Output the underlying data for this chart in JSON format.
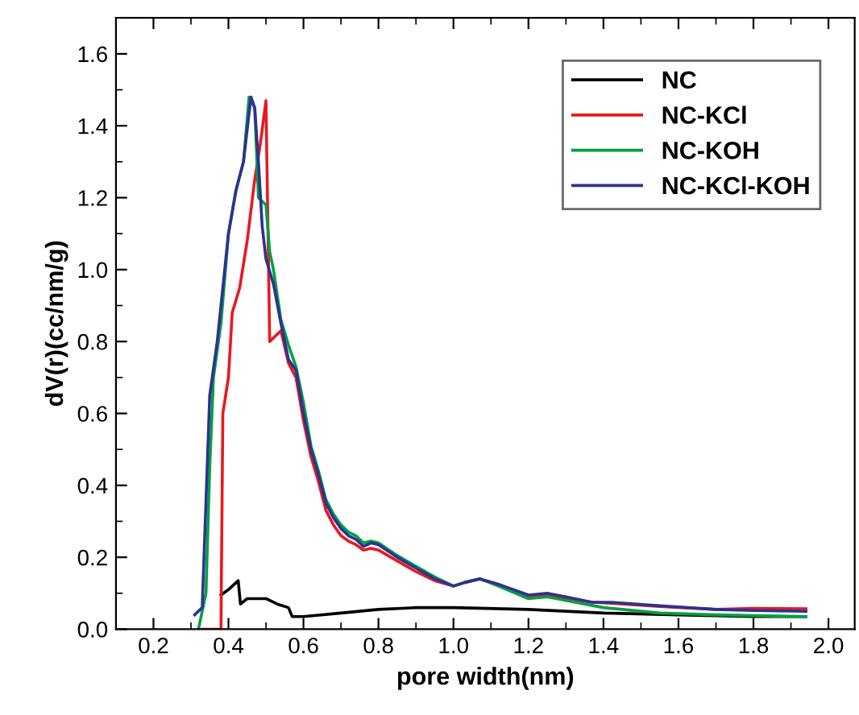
{
  "chart_data": {
    "type": "line",
    "xlabel": "pore width(nm)",
    "ylabel": "dV(r)(cc/nm/g)",
    "xlim": [
      0.1,
      2.07
    ],
    "ylim": [
      0,
      1.7
    ],
    "xticks": [
      0.2,
      0.4,
      0.6,
      0.8,
      {
        "value": 1,
        "label": "1.0"
      },
      1.2,
      1.4,
      1.6,
      1.8,
      {
        "value": 2,
        "label": "2.0"
      }
    ],
    "yticks": [
      {
        "value": 0,
        "label": "0.0"
      },
      0.2,
      0.4,
      0.6,
      0.8,
      {
        "value": 1,
        "label": "1.0"
      },
      1.2,
      1.4,
      1.6
    ],
    "grid": false,
    "legend": "top right",
    "marker": "none",
    "line_style": "solid",
    "series": [
      {
        "name": "NC",
        "color": "#000000",
        "x": [
          0.38,
          0.4,
          0.426,
          0.432,
          0.45,
          0.5,
          0.53,
          0.56,
          0.57,
          0.6,
          0.7,
          0.8,
          0.9,
          1.0,
          1.2,
          1.4,
          1.6,
          1.8,
          1.94
        ],
        "values": [
          0.095,
          0.11,
          0.135,
          0.07,
          0.085,
          0.085,
          0.07,
          0.06,
          0.035,
          0.035,
          0.045,
          0.055,
          0.06,
          0.06,
          0.055,
          0.045,
          0.04,
          0.035,
          0.035
        ]
      },
      {
        "name": "NC-KCl",
        "color": "#e8191f",
        "x": [
          0.33,
          0.38,
          0.385,
          0.4,
          0.41,
          0.43,
          0.45,
          0.47,
          0.485,
          0.5,
          0.51,
          0.54,
          0.56,
          0.58,
          0.6,
          0.62,
          0.64,
          0.66,
          0.68,
          0.7,
          0.72,
          0.74,
          0.76,
          0.78,
          0.8,
          0.85,
          0.9,
          0.95,
          1.0,
          1.03,
          1.07,
          1.12,
          1.2,
          1.25,
          1.3,
          1.37,
          1.42,
          1.55,
          1.7,
          1.8,
          1.94
        ],
        "values": [
          0.0,
          0.0,
          0.6,
          0.7,
          0.88,
          0.95,
          1.08,
          1.25,
          1.35,
          1.47,
          0.8,
          0.83,
          0.74,
          0.7,
          0.58,
          0.48,
          0.41,
          0.33,
          0.29,
          0.26,
          0.245,
          0.235,
          0.22,
          0.225,
          0.22,
          0.19,
          0.16,
          0.135,
          0.12,
          0.13,
          0.14,
          0.125,
          0.09,
          0.095,
          0.085,
          0.075,
          0.072,
          0.063,
          0.055,
          0.058,
          0.057
        ]
      },
      {
        "name": "NC-KOH",
        "color": "#00a040",
        "x": [
          0.32,
          0.34,
          0.35,
          0.36,
          0.38,
          0.4,
          0.42,
          0.44,
          0.455,
          0.47,
          0.48,
          0.5,
          0.51,
          0.52,
          0.54,
          0.56,
          0.58,
          0.6,
          0.62,
          0.64,
          0.66,
          0.68,
          0.7,
          0.72,
          0.74,
          0.76,
          0.78,
          0.8,
          0.85,
          0.9,
          0.95,
          1.0,
          1.03,
          1.07,
          1.12,
          1.2,
          1.25,
          1.3,
          1.4,
          1.55,
          1.7,
          1.94
        ],
        "values": [
          0.0,
          0.1,
          0.45,
          0.7,
          0.85,
          1.1,
          1.22,
          1.3,
          1.48,
          1.45,
          1.2,
          1.18,
          1.05,
          1.0,
          0.86,
          0.79,
          0.73,
          0.63,
          0.51,
          0.44,
          0.36,
          0.32,
          0.29,
          0.27,
          0.26,
          0.24,
          0.245,
          0.24,
          0.205,
          0.175,
          0.145,
          0.12,
          0.13,
          0.14,
          0.12,
          0.085,
          0.09,
          0.08,
          0.06,
          0.045,
          0.04,
          0.035
        ]
      },
      {
        "name": "NC-KCl-KOH",
        "color": "#2e3192",
        "x": [
          0.31,
          0.33,
          0.35,
          0.37,
          0.38,
          0.4,
          0.42,
          0.44,
          0.46,
          0.47,
          0.48,
          0.49,
          0.5,
          0.52,
          0.54,
          0.56,
          0.58,
          0.6,
          0.62,
          0.64,
          0.66,
          0.68,
          0.7,
          0.72,
          0.74,
          0.76,
          0.78,
          0.8,
          0.85,
          0.9,
          0.95,
          1.0,
          1.03,
          1.07,
          1.12,
          1.2,
          1.25,
          1.3,
          1.37,
          1.42,
          1.55,
          1.7,
          1.8,
          1.94
        ],
        "values": [
          0.04,
          0.06,
          0.65,
          0.8,
          0.9,
          1.1,
          1.22,
          1.3,
          1.48,
          1.45,
          1.3,
          1.12,
          1.03,
          0.96,
          0.85,
          0.75,
          0.72,
          0.6,
          0.5,
          0.43,
          0.35,
          0.31,
          0.28,
          0.26,
          0.25,
          0.23,
          0.24,
          0.235,
          0.2,
          0.17,
          0.14,
          0.12,
          0.13,
          0.14,
          0.125,
          0.095,
          0.1,
          0.09,
          0.075,
          0.075,
          0.065,
          0.055,
          0.052,
          0.05
        ]
      }
    ]
  }
}
